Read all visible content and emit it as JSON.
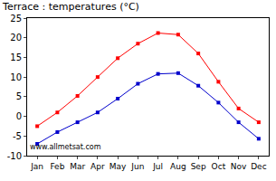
{
  "chart_data": {
    "type": "line",
    "title": "Terrace : temperatures (°C)",
    "categories": [
      "Jan",
      "Feb",
      "Mar",
      "Apr",
      "May",
      "Jun",
      "Jul",
      "Aug",
      "Sep",
      "Oct",
      "Nov",
      "Dec"
    ],
    "series": [
      {
        "color": "#ff0000",
        "marker": "square",
        "values": [
          -2.5,
          1,
          5.2,
          10,
          14.8,
          18.5,
          21.2,
          20.8,
          16,
          8.8,
          2,
          -1.5
        ]
      },
      {
        "color": "#0000cc",
        "marker": "square",
        "values": [
          -7,
          -4,
          -1.5,
          1,
          4.5,
          8.3,
          10.8,
          11,
          7.8,
          3.5,
          -1.5,
          -5.7
        ]
      }
    ],
    "ylim": [
      -10,
      25
    ],
    "yticks": [
      -10,
      -5,
      0,
      5,
      10,
      15,
      20,
      25
    ],
    "grid": false,
    "annotations": [
      "www.allmetsat.com"
    ]
  }
}
